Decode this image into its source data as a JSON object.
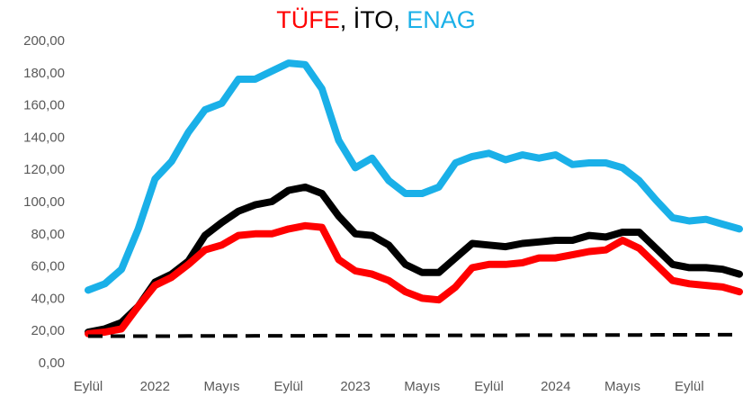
{
  "chart_data": {
    "type": "line",
    "title_parts": [
      {
        "text": "TÜFE",
        "color": "#ff0000"
      },
      {
        "text": ", İTO, ",
        "color": "#000000"
      },
      {
        "text": "ENAG",
        "color": "#1ab0e8"
      }
    ],
    "xlabel": "",
    "ylabel": "",
    "ylim": [
      0,
      200
    ],
    "y_ticks": [
      "0,00",
      "20,00",
      "40,00",
      "60,00",
      "80,00",
      "100,00",
      "120,00",
      "140,00",
      "160,00",
      "180,00",
      "200,00"
    ],
    "x_tick_labels": [
      {
        "label": "Eylül",
        "index": 0
      },
      {
        "label": "2022",
        "index": 4
      },
      {
        "label": "Mayıs",
        "index": 8
      },
      {
        "label": "Eylül",
        "index": 12
      },
      {
        "label": "2023",
        "index": 16
      },
      {
        "label": "Mayıs",
        "index": 20
      },
      {
        "label": "Eylül",
        "index": 24
      },
      {
        "label": "2024",
        "index": 28
      },
      {
        "label": "Mayıs",
        "index": 32
      },
      {
        "label": "Eylül",
        "index": 36
      }
    ],
    "n_points": 40,
    "grid": false,
    "legend": "none (series named by colored title)",
    "series": [
      {
        "name": "ENAG",
        "color": "#1ab0e8",
        "dash": false,
        "values": [
          45,
          49,
          58,
          83,
          114,
          125,
          143,
          157,
          161,
          176,
          176,
          181,
          186,
          185,
          170,
          138,
          121,
          127,
          113,
          105,
          105,
          109,
          124,
          128,
          130,
          126,
          129,
          127,
          129,
          123,
          124,
          124,
          121,
          113,
          101,
          90,
          88,
          89,
          86,
          83
        ]
      },
      {
        "name": "İTO",
        "color": "#000000",
        "dash": false,
        "values": [
          19,
          21,
          25,
          35,
          50,
          55,
          63,
          79,
          87,
          94,
          98,
          100,
          107,
          109,
          105,
          91,
          80,
          79,
          73,
          61,
          56,
          56,
          65,
          74,
          73,
          72,
          74,
          75,
          76,
          76,
          79,
          78,
          81,
          81,
          71,
          61,
          59,
          59,
          58,
          55
        ]
      },
      {
        "name": "TÜFE",
        "color": "#ff0000",
        "dash": false,
        "values": [
          18,
          19,
          21,
          35,
          48,
          53,
          61,
          70,
          73,
          79,
          80,
          80,
          83,
          85,
          84,
          64,
          57,
          55,
          51,
          44,
          40,
          39,
          47,
          59,
          61,
          61,
          62,
          65,
          65,
          67,
          69,
          70,
          76,
          71,
          61,
          51,
          49,
          48,
          47,
          44
        ]
      },
      {
        "name": "",
        "color": "#000000",
        "dash": true,
        "values": [
          16.5,
          16.5,
          16.5,
          16.5,
          16.5,
          16.5,
          16.6,
          16.6,
          16.6,
          16.6,
          16.7,
          16.7,
          16.7,
          16.7,
          16.8,
          16.8,
          16.8,
          16.8,
          16.9,
          16.9,
          16.9,
          16.9,
          17.0,
          17.0,
          17.0,
          17.0,
          17.1,
          17.1,
          17.1,
          17.1,
          17.2,
          17.2,
          17.2,
          17.2,
          17.3,
          17.3,
          17.3,
          17.3,
          17.4,
          17.4
        ]
      }
    ]
  }
}
